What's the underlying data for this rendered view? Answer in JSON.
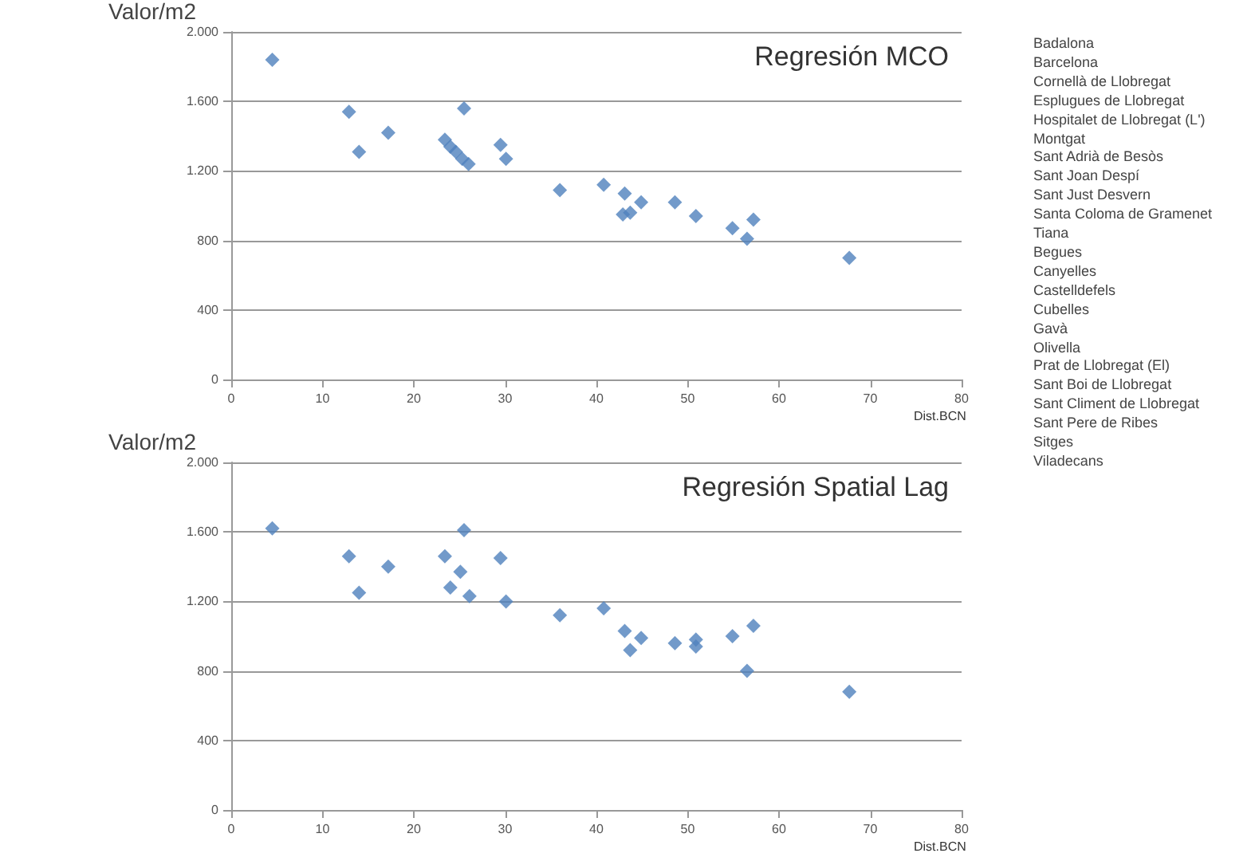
{
  "chart_data": [
    {
      "type": "scatter",
      "title": "Regresión MCO",
      "ylabel": "Valor/m2",
      "xlabel": "Dist.BCN",
      "marker": "diamond",
      "grid": "y",
      "series": [
        {
          "color": "#4f81bd",
          "x": [
            4.5,
            12.9,
            14.0,
            17.2,
            23.4,
            24.0,
            24.6,
            25.3,
            26.0,
            25.5,
            29.5,
            30.1,
            36.0,
            40.8,
            43.1,
            42.9,
            43.7,
            44.9,
            48.6,
            50.9,
            54.9,
            56.5,
            57.2,
            67.7
          ],
          "values": [
            1840,
            1540,
            1310,
            1420,
            1380,
            1340,
            1310,
            1270,
            1240,
            1560,
            1350,
            1270,
            1090,
            1120,
            1070,
            950,
            960,
            1020,
            1020,
            940,
            870,
            810,
            920,
            700
          ]
        }
      ],
      "xlim": [
        0,
        80
      ],
      "xticks": [
        0,
        10,
        20,
        30,
        40,
        50,
        60,
        70,
        80
      ],
      "ylim": [
        0,
        2000
      ],
      "yticks": [
        0,
        400,
        800,
        {
          "value": 1200,
          "label": "1.200"
        },
        {
          "value": 1600,
          "label": "1.600"
        },
        {
          "value": 2000,
          "label": "2.000"
        }
      ]
    },
    {
      "type": "scatter",
      "title": "Regresión Spatial Lag",
      "ylabel": "Valor/m2",
      "xlabel": "Dist.BCN",
      "marker": "diamond",
      "grid": "y",
      "series": [
        {
          "color": "#4f81bd",
          "x": [
            4.5,
            12.9,
            14.0,
            17.2,
            23.4,
            24.0,
            25.1,
            25.5,
            26.1,
            29.5,
            30.1,
            36.0,
            40.8,
            43.1,
            43.7,
            44.9,
            48.6,
            50.9,
            50.9,
            54.9,
            56.5,
            57.2,
            67.7
          ],
          "values": [
            1620,
            1460,
            1250,
            1400,
            1460,
            1280,
            1370,
            1610,
            1230,
            1450,
            1200,
            1120,
            1160,
            1030,
            920,
            990,
            960,
            980,
            940,
            1000,
            800,
            1060,
            680
          ]
        }
      ],
      "xlim": [
        0,
        80
      ],
      "xticks": [
        0,
        10,
        20,
        30,
        40,
        50,
        60,
        70,
        80
      ],
      "ylim": [
        0,
        2000
      ],
      "yticks": [
        0,
        400,
        800,
        {
          "value": 1200,
          "label": "1.200"
        },
        {
          "value": 1600,
          "label": "1.600"
        },
        {
          "value": 2000,
          "label": "2.000"
        }
      ]
    },
    {
      "type": "other",
      "annotations": [
        "Badalona",
        "Barcelona",
        "Cornellà de Llobregat",
        "Esplugues de Llobregat",
        "Hospitalet de Llobregat (L')",
        "Montgat",
        "Sant Adrià de Besòs",
        "Sant Joan Despí",
        "Sant Just Desvern",
        "Santa Coloma de Gramenet",
        "Tiana",
        "Begues",
        "Canyelles",
        "Castelldefels",
        "Cubelles",
        "Gavà",
        "Olivella",
        "Prat de Llobregat (El)",
        "Sant Boi de Llobregat",
        "Sant Climent de Llobregat",
        "Sant Pere de Ribes",
        "Sitges",
        "Viladecans"
      ]
    }
  ]
}
